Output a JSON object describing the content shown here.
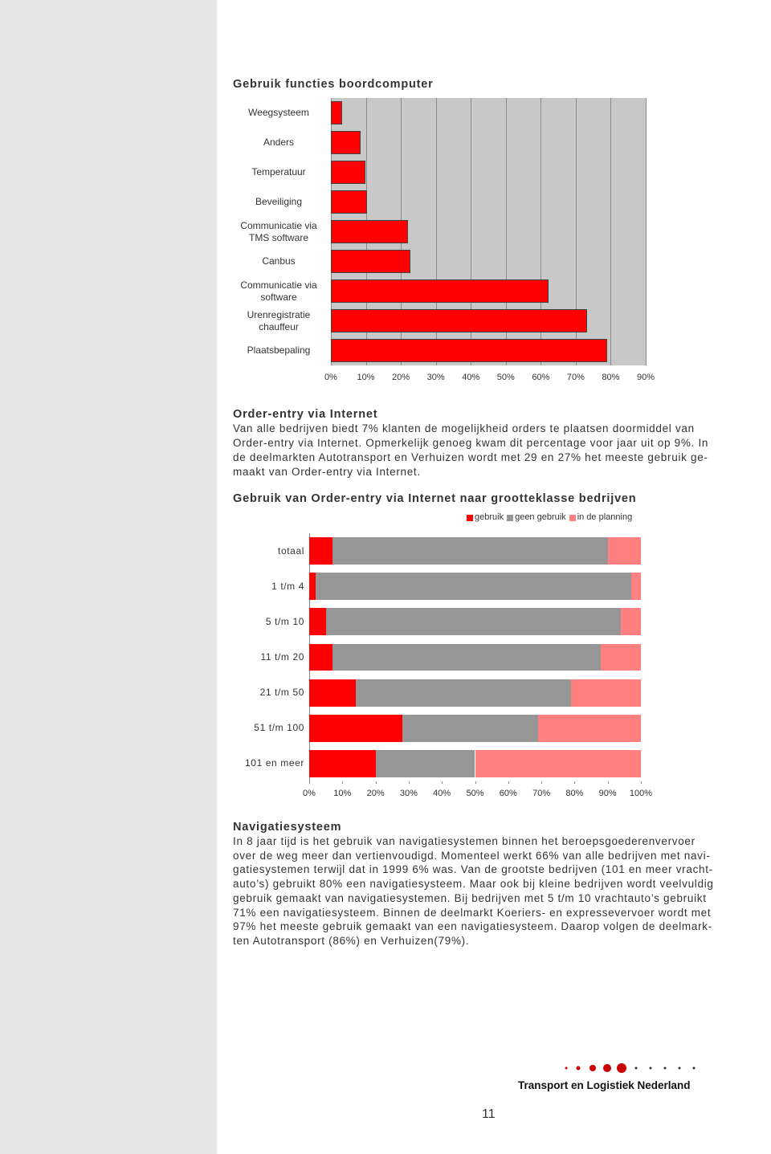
{
  "chart_data": [
    {
      "type": "barh",
      "title": "Gebruik functies boordcomputer",
      "categories": [
        "Weegsysteem",
        "Anders",
        "Temperatuur",
        "Beveiliging",
        "Communicatie via TMS software",
        "Canbus",
        "Communicatie via software",
        "Urenregistratie chauffeur",
        "Plaatsbepaling"
      ],
      "values": [
        3.2,
        8.5,
        9.9,
        10.3,
        22,
        22.7,
        62.2,
        73.2,
        78.9
      ],
      "color": "#ff0000",
      "xlim": [
        0,
        90
      ],
      "xticks": [
        {
          "value": 0,
          "label": "0%"
        },
        {
          "value": 10,
          "label": "10%"
        },
        {
          "value": 20,
          "label": "20%"
        },
        {
          "value": 30,
          "label": "30%"
        },
        {
          "value": 40,
          "label": "40%"
        },
        {
          "value": 50,
          "label": "50%"
        },
        {
          "value": 60,
          "label": "60%"
        },
        {
          "value": 70,
          "label": "70%"
        },
        {
          "value": 80,
          "label": "80%"
        },
        {
          "value": 90,
          "label": "90%"
        }
      ],
      "grid": true
    },
    {
      "type": "stacked",
      "title": "Gebruik van Order-entry via Internet naar grootteklasse bedrijven",
      "categories": [
        "totaal",
        "1 t/m 4",
        "5 t/m 10",
        "11 t/m 20",
        "21 t/m 50",
        "51 t/m 100",
        "101 en meer"
      ],
      "series": [
        {
          "name": "gebruik",
          "color": "#ff0000",
          "values": [
            7,
            2,
            5,
            7,
            14,
            28,
            20
          ]
        },
        {
          "name": "geen gebruik",
          "color": "#969696",
          "values": [
            83,
            95,
            89,
            81,
            65,
            41,
            30
          ]
        },
        {
          "name": "in de planning",
          "color": "#ff8080",
          "values": [
            10,
            3,
            6,
            12,
            21,
            31,
            50
          ]
        }
      ],
      "xlim": [
        0,
        100
      ],
      "xticks": [
        {
          "value": 0,
          "label": "0%"
        },
        {
          "value": 10,
          "label": "10%"
        },
        {
          "value": 20,
          "label": "20%"
        },
        {
          "value": 30,
          "label": "30%"
        },
        {
          "value": 40,
          "label": "40%"
        },
        {
          "value": 50,
          "label": "50%"
        },
        {
          "value": 60,
          "label": "60%"
        },
        {
          "value": 70,
          "label": "70%"
        },
        {
          "value": 80,
          "label": "80%"
        },
        {
          "value": 90,
          "label": "90%"
        },
        {
          "value": 100,
          "label": "100%"
        }
      ],
      "grid": false,
      "legend": "top"
    }
  ],
  "sections": [
    {
      "heading": "Order-entry via Internet",
      "lines": [
        "Van alle bedrijven biedt 7% klanten de mogelijkheid orders te plaatsen doormiddel van",
        "Order-entry via Internet. Opmerkelijk genoeg kwam dit percentage voor jaar uit op 9%. In",
        "de deelmarkten Autotransport en Verhuizen wordt met 29 en 27% het meeste gebruik ge-",
        "maakt van Order-entry via Internet."
      ]
    },
    {
      "heading": "Navigatiesysteem",
      "lines": [
        "In 8 jaar tijd is het gebruik van navigatiesystemen binnen het beroepsgoederenvervoer",
        "over de weg meer dan vertienvoudigd. Momenteel werkt 66% van alle bedrijven met navi-",
        "gatiesystemen terwijl dat in 1999 6% was. Van de grootste bedrijven (101 en meer vracht-",
        "auto’s) gebruikt 80% een navigatiesysteem. Maar ook bij kleine bedrijven wordt veelvuldig",
        "gebruik gemaakt van navigatiesystemen. Bij bedrijven met 5 t/m 10 vrachtauto’s gebruikt",
        "71% een navigatiesysteem. Binnen de deelmarkt Koeriers- en expressevervoer wordt met",
        "97% het meeste gebruik gemaakt van een navigatiesysteem. Daarop volgen de deelmark-",
        "ten Autotransport (86%) en Verhuizen(79%)."
      ]
    }
  ],
  "footer": {
    "logo": "Transport en Logistiek Nederland",
    "page_number": "11"
  }
}
